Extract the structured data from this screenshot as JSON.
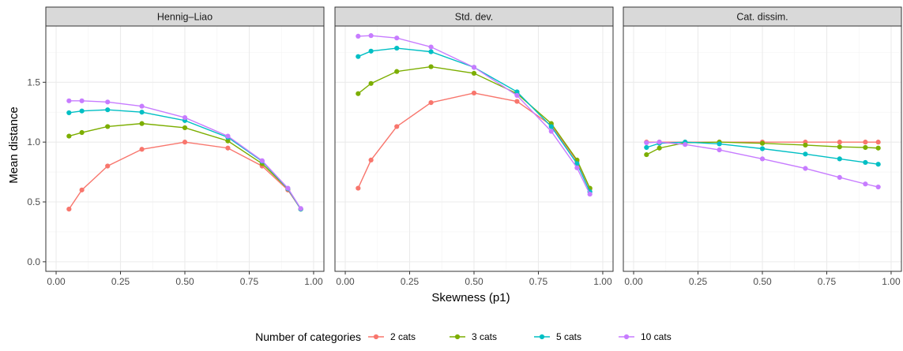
{
  "chart_data": {
    "type": "line",
    "facet_labels": [
      "Hennig–Liao",
      "Std. dev.",
      "Cat. dissim."
    ],
    "xlabel": "Skewness (p1)",
    "ylabel": "Mean distance",
    "xlim": [
      0,
      1
    ],
    "ylim": [
      0,
      1.95
    ],
    "x_ticks": [
      0,
      0.25,
      0.5,
      0.75,
      1
    ],
    "x_tick_labels": [
      "0.00",
      "0.25",
      "0.50",
      "0.75",
      "1.00"
    ],
    "y_ticks": [
      0,
      0.5,
      1,
      1.5
    ],
    "y_tick_labels": [
      "0.0",
      "0.5",
      "1.0",
      "1.5"
    ],
    "grid": true,
    "legend": {
      "title": "Number of categories",
      "position": "bottom",
      "entries": [
        "2 cats",
        "3 cats",
        "5 cats",
        "10 cats"
      ]
    },
    "colors": [
      "#F8766D",
      "#7CAE00",
      "#00BFC4",
      "#C77CFF"
    ],
    "x": [
      0.05,
      0.1,
      0.2,
      0.333,
      0.5,
      0.667,
      0.8,
      0.9,
      0.95
    ],
    "panels": [
      {
        "label": "Hennig–Liao",
        "series": [
          {
            "name": "2 cats",
            "values": [
              0.44,
              0.6,
              0.8,
              0.94,
              1.0,
              0.95,
              0.8,
              0.6,
              0.44
            ]
          },
          {
            "name": "3 cats",
            "values": [
              1.05,
              1.08,
              1.13,
              1.155,
              1.12,
              1.01,
              0.82,
              0.61,
              0.44
            ]
          },
          {
            "name": "5 cats",
            "values": [
              1.245,
              1.26,
              1.27,
              1.25,
              1.18,
              1.04,
              0.84,
              0.61,
              0.44
            ]
          },
          {
            "name": "10 cats",
            "values": [
              1.345,
              1.345,
              1.335,
              1.3,
              1.205,
              1.05,
              0.845,
              0.615,
              0.445
            ]
          }
        ]
      },
      {
        "label": "Std. dev.",
        "series": [
          {
            "name": "2 cats",
            "values": [
              0.615,
              0.85,
              1.13,
              1.33,
              1.41,
              1.34,
              1.14,
              0.84,
              0.61
            ]
          },
          {
            "name": "3 cats",
            "values": [
              1.405,
              1.49,
              1.59,
              1.63,
              1.575,
              1.405,
              1.155,
              0.85,
              0.615
            ]
          },
          {
            "name": "5 cats",
            "values": [
              1.715,
              1.76,
              1.785,
              1.755,
              1.625,
              1.42,
              1.13,
              0.82,
              0.585
            ]
          },
          {
            "name": "10 cats",
            "values": [
              1.885,
              1.89,
              1.87,
              1.795,
              1.625,
              1.39,
              1.09,
              0.785,
              0.565
            ]
          }
        ]
      },
      {
        "label": "Cat. dissim.",
        "series": [
          {
            "name": "2 cats",
            "values": [
              1.0,
              1.0,
              1.0,
              1.0,
              1.0,
              1.0,
              1.0,
              1.0,
              1.0
            ]
          },
          {
            "name": "3 cats",
            "values": [
              0.895,
              0.95,
              0.995,
              1.0,
              0.99,
              0.975,
              0.96,
              0.955,
              0.95
            ]
          },
          {
            "name": "5 cats",
            "values": [
              0.955,
              0.99,
              1.0,
              0.985,
              0.945,
              0.9,
              0.86,
              0.83,
              0.815
            ]
          },
          {
            "name": "10 cats",
            "values": [
              0.995,
              1.0,
              0.98,
              0.935,
              0.86,
              0.78,
              0.705,
              0.65,
              0.625
            ]
          }
        ]
      }
    ]
  }
}
